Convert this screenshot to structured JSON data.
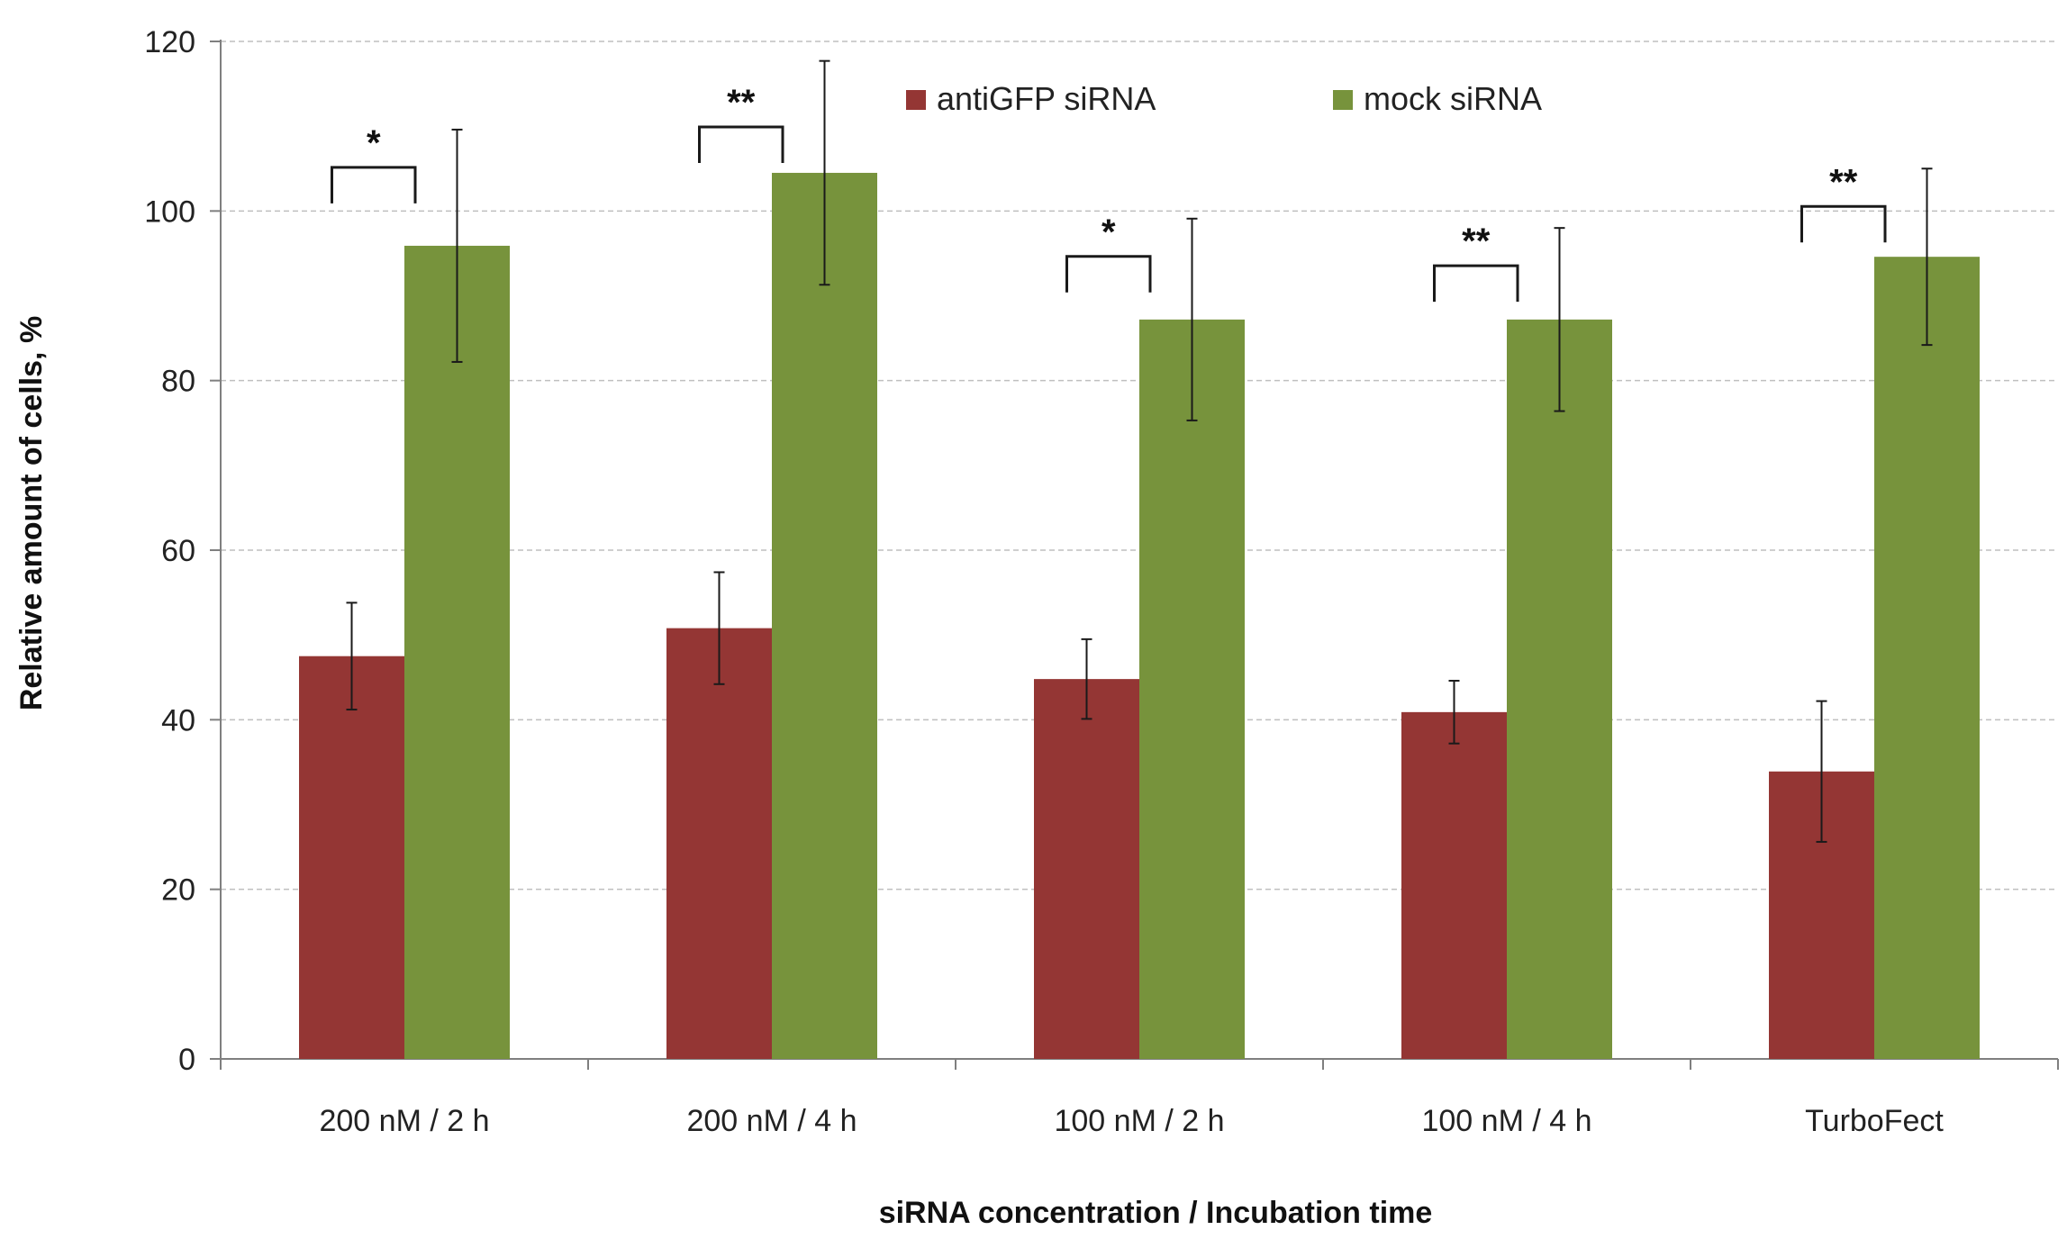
{
  "chart_data": {
    "type": "bar",
    "title": "",
    "xlabel": "siRNA concentration / Incubation time",
    "ylabel": "Relative amount of cells, %",
    "ylim": [
      0,
      120
    ],
    "yticks": [
      0,
      20,
      40,
      60,
      80,
      100,
      120
    ],
    "grid": true,
    "legend_position": "top-center",
    "categories": [
      "200 nM / 2 h",
      "200 nM / 4 h",
      "100 nM / 2 h",
      "100 nM / 4 h",
      "TurboFect"
    ],
    "series": [
      {
        "name": "antiGFP siRNA",
        "color": "#943634",
        "values": [
          47.5,
          50.8,
          44.8,
          40.9,
          33.9
        ],
        "error": [
          6.3,
          6.6,
          4.7,
          3.7,
          8.3
        ]
      },
      {
        "name": "mock siRNA",
        "color": "#77933C",
        "values": [
          95.9,
          104.5,
          87.2,
          87.2,
          94.6
        ],
        "error": [
          13.7,
          13.2,
          11.9,
          10.8,
          10.4
        ]
      }
    ],
    "significance": [
      "*",
      "**",
      "*",
      "**",
      "**"
    ]
  }
}
